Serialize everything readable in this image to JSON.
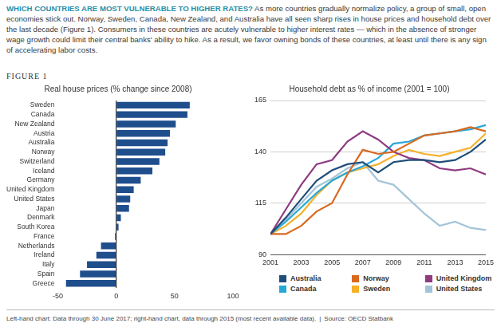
{
  "header": {
    "title": "WHICH COUNTRIES ARE MOST VULNERABLE TO HIGHER RATES?",
    "text": "As more countries gradually normalize policy, a group of small, open economies stick out. Norway, Sweden, Canada, New Zealand, and Australia have all seen sharp rises in house prices and household debt over the last decade (Figure 1). Consumers in these countries are acutely vulnerable to higher interest rates — which in the absence of stronger wage growth could limit their central banks' ability to hike. As a result, we favor owning bonds of these countries, at least until there is any sign of accelerating labor costs."
  },
  "figure_label": "FIGURE 1",
  "chart_data": [
    {
      "type": "bar",
      "orientation": "horizontal",
      "title": "Real house prices (% change since 2008)",
      "categories": [
        "Sweden",
        "Canada",
        "New Zealand",
        "Austria",
        "Australia",
        "Norway",
        "Switzerland",
        "Iceland",
        "Germany",
        "United Kingdom",
        "United States",
        "Japan",
        "Denmark",
        "South Korea",
        "France",
        "Netherlands",
        "Ireland",
        "Italy",
        "Spain",
        "Greece"
      ],
      "values": [
        63,
        61,
        51,
        46,
        44,
        42,
        37,
        31,
        21,
        15,
        12,
        11,
        4,
        2,
        -1,
        -13,
        -17,
        -25,
        -31,
        -43
      ],
      "color": "#1f4e8c",
      "xlim": [
        -50,
        100
      ],
      "xticks": [
        -50,
        0,
        50,
        100
      ],
      "grid": false
    },
    {
      "type": "line",
      "title": "Household debt as % of income (2001 = 100)",
      "x": [
        2001,
        2002,
        2003,
        2004,
        2005,
        2006,
        2007,
        2008,
        2009,
        2010,
        2011,
        2012,
        2013,
        2014,
        2015
      ],
      "series": [
        {
          "name": "Australia",
          "color": "#1f4e79",
          "values": [
            100,
            108,
            117,
            126,
            131,
            134,
            135,
            130,
            135,
            136,
            136,
            135,
            136,
            140,
            146
          ]
        },
        {
          "name": "Norway",
          "color": "#d9691f",
          "values": [
            100,
            100,
            104,
            111,
            115,
            129,
            141,
            139,
            140,
            144,
            148,
            149,
            150,
            152,
            150
          ]
        },
        {
          "name": "United Kingdom",
          "color": "#8e3b80",
          "values": [
            100,
            112,
            124,
            134,
            136,
            145,
            150,
            146,
            140,
            137,
            136,
            132,
            131,
            132,
            129
          ]
        },
        {
          "name": "Canada",
          "color": "#27a9d6",
          "values": [
            100,
            106,
            113,
            120,
            126,
            130,
            133,
            137,
            144,
            145,
            148,
            149,
            150,
            151,
            153
          ]
        },
        {
          "name": "Sweden",
          "color": "#f6b12a",
          "values": [
            100,
            104,
            110,
            119,
            126,
            130,
            132,
            134,
            138,
            141,
            139,
            138,
            140,
            142,
            149
          ]
        },
        {
          "name": "United States",
          "color": "#a3c4d8",
          "values": [
            100,
            107,
            115,
            123,
            127,
            132,
            135,
            126,
            124,
            117,
            110,
            104,
            106,
            103,
            102
          ]
        }
      ],
      "xlim": [
        2001,
        2015
      ],
      "xticks": [
        2001,
        2003,
        2005,
        2007,
        2009,
        2011,
        2013,
        2015
      ],
      "ylim": [
        90,
        165
      ],
      "yticks": [
        90,
        115,
        140,
        165
      ],
      "grid": true,
      "legend": "bottom"
    }
  ],
  "footnote": {
    "note": "Left-hand chart: Data through 30 June 2017; right-hand chart, data through 2015 (most recent available data).",
    "separator": "|",
    "source": "Source: OECD Statbank"
  }
}
